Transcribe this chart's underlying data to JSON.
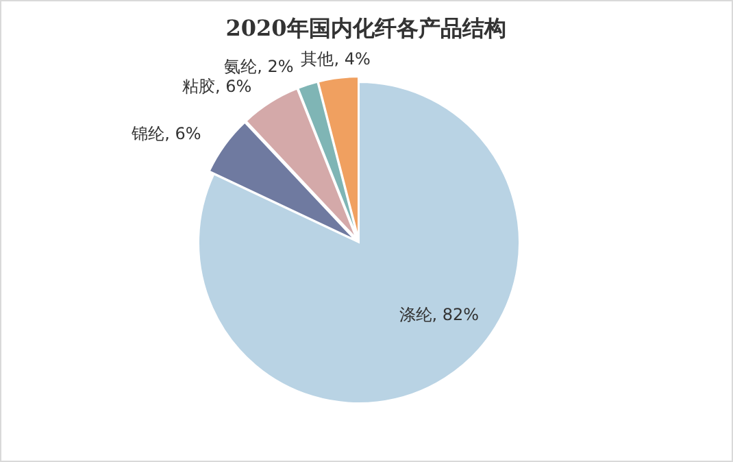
{
  "chart_data": {
    "type": "pie",
    "title": "2020年国内化纤各产品结构",
    "categories": [
      "涤纶",
      "锦纶",
      "粘胶",
      "氨纶",
      "其他"
    ],
    "values": [
      82,
      6,
      6,
      2,
      4
    ],
    "value_labels": [
      "82%",
      "6%",
      "6%",
      "2%",
      "4%"
    ],
    "colors": [
      "#b9d3e4",
      "#6f7aa0",
      "#d4a9a9",
      "#7fb5b5",
      "#f0a060"
    ]
  }
}
